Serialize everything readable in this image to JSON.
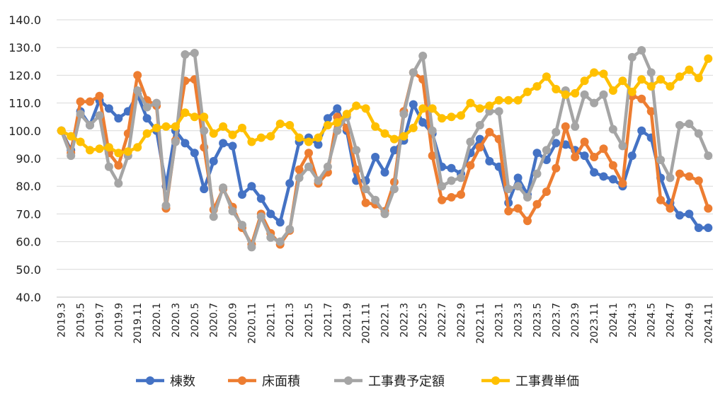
{
  "chart_data": {
    "type": "line",
    "title": "",
    "xlabel": "",
    "ylabel": "",
    "ylim": [
      40,
      140
    ],
    "yticks": [
      "40.0",
      "50.0",
      "60.0",
      "70.0",
      "80.0",
      "90.0",
      "100.0",
      "110.0",
      "120.0",
      "130.0",
      "140.0"
    ],
    "x": [
      "2019.3",
      "2019.4",
      "2019.5",
      "2019.6",
      "2019.7",
      "2019.8",
      "2019.9",
      "2019.10",
      "2019.11",
      "2019.12",
      "2020.1",
      "2020.2",
      "2020.3",
      "2020.4",
      "2020.5",
      "2020.6",
      "2020.7",
      "2020.8",
      "2020.9",
      "2020.10",
      "2020.11",
      "2020.12",
      "2021.1",
      "2021.2",
      "2021.3",
      "2021.4",
      "2021.5",
      "2021.6",
      "2021.7",
      "2021.8",
      "2021.9",
      "2021.10",
      "2021.11",
      "2021.12",
      "2022.1",
      "2022.2",
      "2022.3",
      "2022.4",
      "2022.5",
      "2022.6",
      "2022.7",
      "2022.8",
      "2022.9",
      "2022.10",
      "2022.11",
      "2022.12",
      "2023.1",
      "2023.2",
      "2023.3",
      "2023.4",
      "2023.5",
      "2023.6",
      "2023.7",
      "2023.8",
      "2023.9",
      "2023.10",
      "2023.11",
      "2023.12",
      "2024.1",
      "2024.2",
      "2024.3",
      "2024.4",
      "2024.5",
      "2024.6",
      "2024.7",
      "2024.8",
      "2024.9",
      "2024.10",
      "2024.11"
    ],
    "xtick_labels": [
      "2019.3",
      "2019.5",
      "2019.7",
      "2019.9",
      "2019.11",
      "2020.1",
      "2020.3",
      "2020.5",
      "2020.7",
      "2020.9",
      "2020.11",
      "2021.1",
      "2021.3",
      "2021.5",
      "2021.7",
      "2021.9",
      "2021.11",
      "2022.1",
      "2022.3",
      "2022.5",
      "2022.7",
      "2022.9",
      "2022.11",
      "2023.1",
      "2023.3",
      "2023.5",
      "2023.7",
      "2023.9",
      "2023.11",
      "2024.1",
      "2024.3",
      "2024.5",
      "2024.7",
      "2024.9",
      "2024.11"
    ],
    "legend_position": "bottom",
    "grid": true,
    "series": [
      {
        "name": "棟数",
        "color": "#4472C4",
        "values": [
          100,
          93,
          107,
          102,
          111,
          108,
          104.5,
          107,
          113,
          104.5,
          100,
          80,
          100,
          95.5,
          92,
          79,
          89,
          95.5,
          94.5,
          77,
          80,
          75.5,
          70,
          67,
          81,
          96,
          97.5,
          95,
          104.5,
          108,
          100,
          82,
          82,
          90.5,
          85,
          93,
          96.5,
          109.5,
          103,
          99,
          87,
          86.5,
          84.5,
          92,
          97,
          89,
          87,
          74,
          83,
          77,
          92,
          89.5,
          95.5,
          95,
          93,
          91,
          85,
          83.5,
          82.5,
          80,
          91,
          100,
          97.5,
          83,
          74,
          69.5,
          70,
          65,
          65
        ]
      },
      {
        "name": "床面積",
        "color": "#ED7D31",
        "values": [
          100,
          92,
          110.5,
          110.5,
          112.5,
          92,
          87.5,
          99,
          120,
          111,
          109,
          72,
          96.5,
          118,
          118.5,
          94,
          71.5,
          79,
          72.5,
          65,
          59,
          70,
          63,
          59,
          64,
          86,
          92,
          81,
          85,
          105,
          101,
          86,
          74,
          73.5,
          71,
          81.5,
          107,
          121,
          118.5,
          91,
          75,
          76,
          77,
          87.5,
          94,
          99.5,
          97,
          71,
          72,
          67.5,
          73.5,
          78,
          86.5,
          101.5,
          90.5,
          96,
          90.5,
          93.5,
          87.5,
          81,
          112.5,
          111.5,
          107,
          75,
          72,
          84.5,
          83.5,
          82,
          72
        ]
      },
      {
        "name": "工事費予定額",
        "color": "#A5A5A5",
        "values": [
          100,
          91,
          106,
          102,
          105.5,
          87,
          81,
          91,
          114.5,
          108.5,
          110,
          73,
          96,
          127.5,
          128,
          100,
          69,
          79.5,
          71,
          66,
          58,
          69,
          61.5,
          60,
          64.5,
          83,
          87,
          82,
          87,
          100,
          105,
          93,
          79,
          75,
          70,
          79,
          106,
          121,
          127,
          100,
          80,
          82,
          83,
          96,
          102,
          107,
          107,
          79,
          80,
          76,
          84.5,
          93,
          99.5,
          114.5,
          101.5,
          113,
          110,
          113,
          100.5,
          94.5,
          126.5,
          129,
          121,
          89.5,
          83,
          102,
          102.5,
          99,
          91
        ]
      },
      {
        "name": "工事費単価",
        "color": "#FFC000",
        "values": [
          100,
          98,
          96,
          93,
          93.5,
          94,
          92,
          92.5,
          94,
          99,
          101,
          101.5,
          101.5,
          106.5,
          105,
          105,
          99,
          101.5,
          98.5,
          101,
          96,
          97.5,
          98,
          102.5,
          102,
          97.5,
          96,
          97.5,
          102,
          103,
          106,
          109,
          108,
          101.5,
          99,
          97,
          98,
          101,
          108,
          108,
          104.5,
          105,
          105.5,
          110,
          108,
          109,
          111,
          111,
          111,
          114,
          116,
          119.5,
          115,
          113,
          113.5,
          118,
          121,
          120.5,
          114.5,
          118,
          114,
          118.5,
          116,
          118.5,
          116,
          119.5,
          122,
          119,
          126
        ]
      }
    ]
  }
}
